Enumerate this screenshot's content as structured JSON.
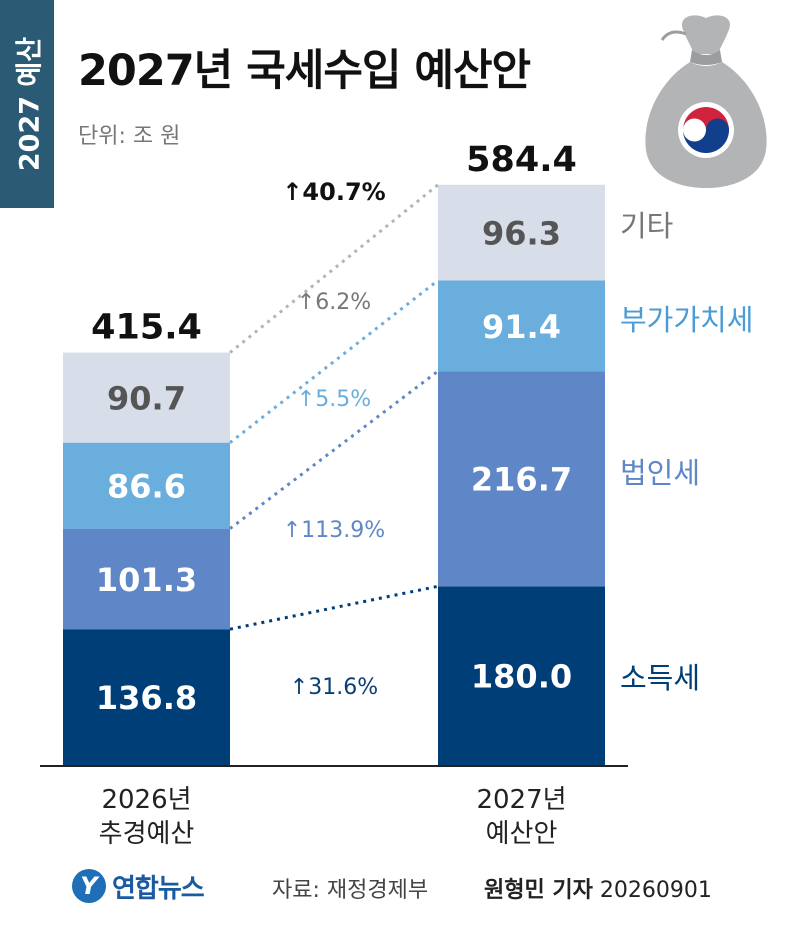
{
  "side_tag": "2027 예산",
  "title": "2027년 국세수입 예산안",
  "unit": "단위: 조 원",
  "source": "자료: 재정경제부",
  "logo_text": "연합뉴스",
  "reporter_name": "원형민 기자",
  "reporter_date": "20260901",
  "colors": {
    "기타": "#d7dde9",
    "부가가치세": "#6aaede",
    "법인세": "#5f87c7",
    "소득세": "#003e78",
    "side_tag": "#2b5a75",
    "bag": "#b3b4b6"
  },
  "icons": [
    "money-bag-icon",
    "taegeuk-emblem-icon",
    "up-arrow-icon"
  ],
  "chart_data": {
    "type": "bar",
    "stacked": true,
    "categories": [
      [
        "2026년",
        "추경예산"
      ],
      [
        "2027년",
        "예산안"
      ]
    ],
    "totals": [
      "415.4",
      "584.4"
    ],
    "total_change": "↑40.7%",
    "series": [
      {
        "name": "소득세",
        "values": [
          136.8,
          180.0
        ],
        "labels": [
          "136.8",
          "180.0"
        ],
        "change": "↑31.6%"
      },
      {
        "name": "법인세",
        "values": [
          101.3,
          216.7
        ],
        "labels": [
          "101.3",
          "216.7"
        ],
        "change": "↑113.9%"
      },
      {
        "name": "부가가치세",
        "values": [
          86.6,
          91.4
        ],
        "labels": [
          "86.6",
          "91.4"
        ],
        "change": "↑5.5%"
      },
      {
        "name": "기타",
        "values": [
          90.7,
          96.3
        ],
        "labels": [
          "90.7",
          "96.3"
        ],
        "change": "↑6.2%"
      }
    ],
    "legend": "right"
  }
}
